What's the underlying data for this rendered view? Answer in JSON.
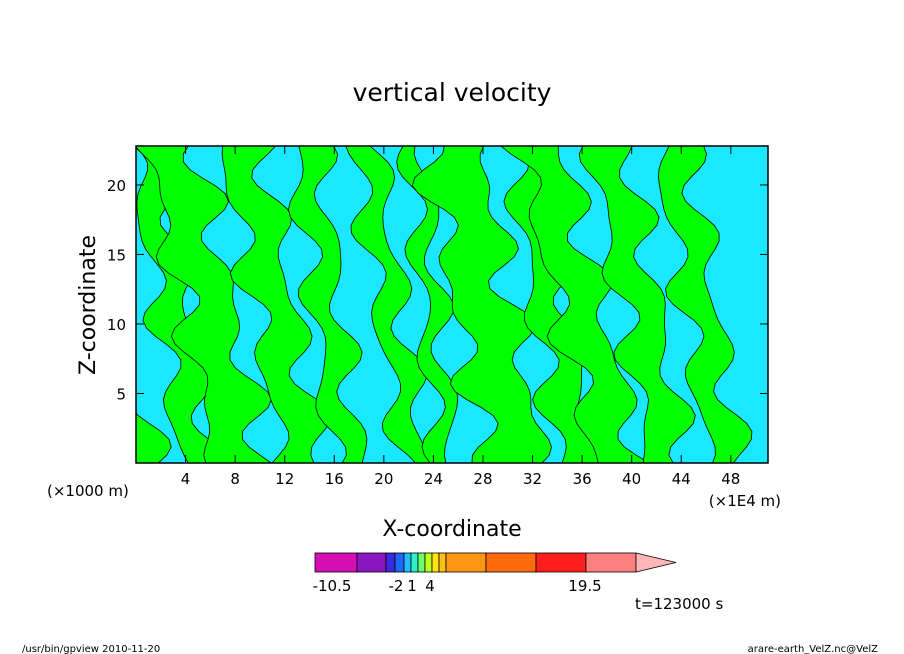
{
  "chart_data": {
    "type": "heatmap",
    "title": "vertical velocity",
    "xlabel": "X-coordinate",
    "ylabel": "Z-coordinate",
    "x_unit_label": "(×1000 m)",
    "x_exponent_label": "(×1E4 m)",
    "x_ticks": [
      4,
      8,
      12,
      16,
      20,
      24,
      28,
      32,
      36,
      40,
      44,
      48
    ],
    "y_ticks": [
      5,
      10,
      15,
      20
    ],
    "xlim": [
      0,
      51
    ],
    "ylim": [
      0,
      22.8
    ],
    "grid": false,
    "colorbar": {
      "colors": [
        "#d60fb4",
        "#8a16c0",
        "#3a2cdc",
        "#1f67ff",
        "#1fbfff",
        "#2ef0c8",
        "#6bff6b",
        "#bfff1a",
        "#ffe60f",
        "#ffc214",
        "#ff9614",
        "#ff6a0f",
        "#ff1e1e",
        "#ff8080",
        "#ffb6b6"
      ],
      "tick_labels": [
        "-10.5",
        "-2",
        "1",
        "4",
        "19.5"
      ]
    },
    "regions": {
      "negative_color": "#1ae8ff",
      "positive_color": "#00ff00"
    },
    "time_label": "t=123000 s"
  },
  "footer": {
    "left": "/usr/bin/gpview   2010-11-20",
    "right": "arare-earth_VelZ.nc@VelZ"
  }
}
